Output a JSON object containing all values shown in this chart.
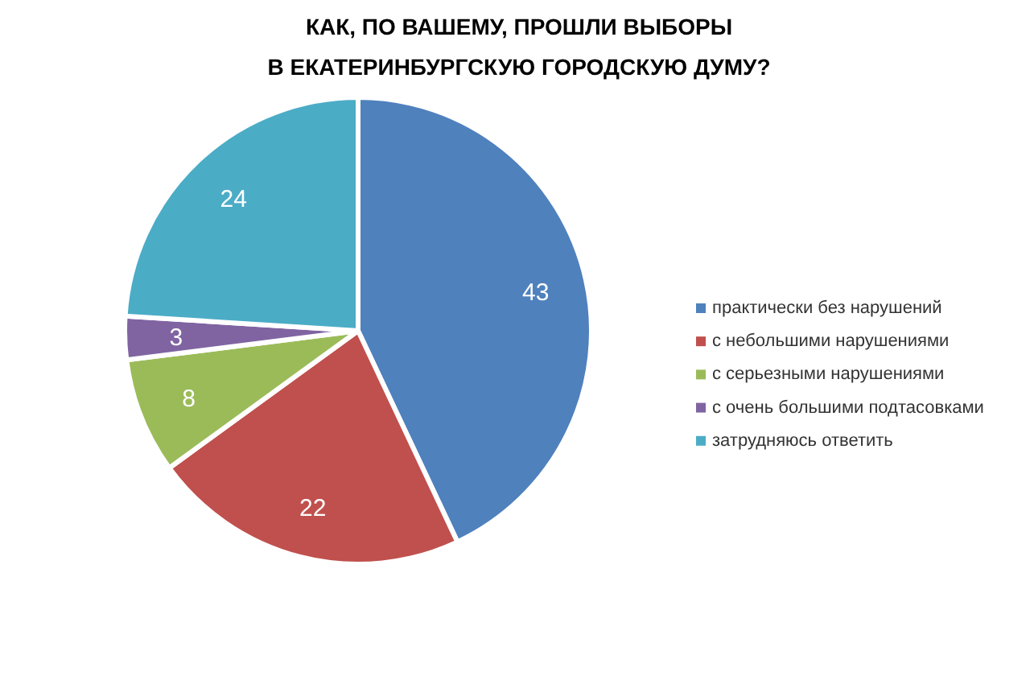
{
  "chart_data": {
    "type": "pie",
    "title": "КАК, ПО ВАШЕМУ, ПРОШЛИ ВЫБОРЫ\nВ ЕКАТЕРИНБУРГСКУЮ ГОРОДСКУЮ ДУМУ?",
    "categories": [
      "практически без нарушений",
      "с небольшими нарушениями",
      "с серьезными нарушениями",
      "с очень большими подтасовками",
      "затрудняюсь ответить"
    ],
    "values": [
      43,
      22,
      8,
      3,
      24
    ],
    "colors": [
      "#4f81bd",
      "#c0504d",
      "#9bbb59",
      "#8064a2",
      "#4bacc6"
    ],
    "data_labels": true,
    "legend": "right"
  }
}
